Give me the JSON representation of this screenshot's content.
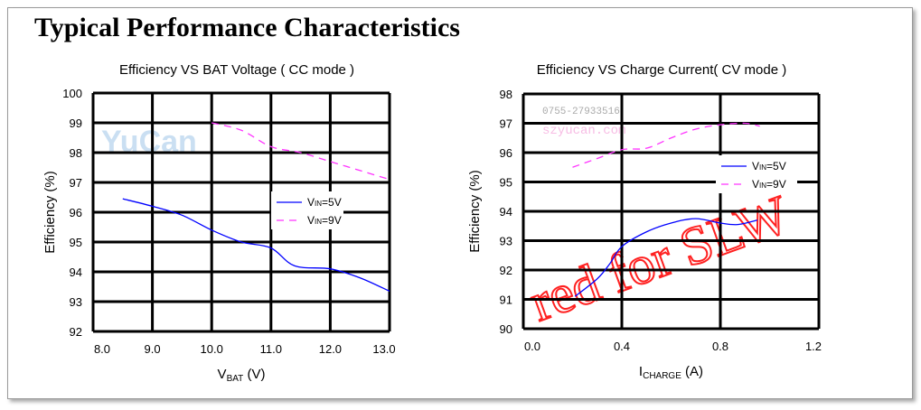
{
  "page_title": "Typical Performance Characteristics",
  "watermark": {
    "logo": "YuCan",
    "phone": "0755-27933516",
    "site": "szyucan.com",
    "stamp": "red for SLW"
  },
  "chart_data": [
    {
      "type": "line",
      "title": "Efficiency VS BAT Voltage ( CC mode )",
      "xlabel": "V",
      "xlabel_sub": "BAT",
      "xlabel_unit": " (V)",
      "ylabel": "Efficiency (%)",
      "xlim": [
        8.0,
        13.0
      ],
      "ylim": [
        92,
        100
      ],
      "xticks": [
        "8.0",
        "9.0",
        "10.0",
        "11.0",
        "12.0",
        "13.0"
      ],
      "yticks": [
        "92",
        "93",
        "94",
        "95",
        "96",
        "97",
        "98",
        "99",
        "100"
      ],
      "grid": true,
      "legend": "middle-right",
      "series": [
        {
          "name": "VIN=5V",
          "name_parts": [
            "V",
            "IN",
            "=5V"
          ],
          "color": "#0000ff",
          "dash": false,
          "x": [
            8.5,
            9.0,
            9.5,
            10.0,
            10.5,
            11.0,
            11.4,
            12.0,
            12.5,
            13.0
          ],
          "y": [
            96.45,
            96.2,
            95.9,
            95.4,
            95.0,
            94.8,
            94.2,
            94.1,
            93.8,
            93.35
          ]
        },
        {
          "name": "VIN=9V",
          "name_parts": [
            "V",
            "IN",
            "=9V"
          ],
          "color": "#ff33ff",
          "dash": true,
          "x": [
            10.0,
            10.5,
            11.0,
            11.5,
            12.0,
            12.5,
            13.0
          ],
          "y": [
            99.0,
            98.75,
            98.2,
            98.0,
            97.7,
            97.4,
            97.1
          ]
        }
      ]
    },
    {
      "type": "line",
      "title": "Efficiency VS Charge Current( CV mode )",
      "xlabel": "I",
      "xlabel_sub": "CHARGE",
      "xlabel_unit": " (A)",
      "ylabel": "Efficiency (%)",
      "xlim": [
        0.0,
        1.2
      ],
      "ylim": [
        90,
        98
      ],
      "xticks": [
        "0.0",
        "0.4",
        "0.8",
        "1.2"
      ],
      "yticks": [
        "90",
        "91",
        "92",
        "93",
        "94",
        "95",
        "96",
        "97",
        "98"
      ],
      "grid": true,
      "legend": "middle-right",
      "series": [
        {
          "name": "VIN=5V",
          "name_parts": [
            "V",
            "IN",
            "=5V"
          ],
          "color": "#0000ff",
          "dash": false,
          "x": [
            0.21,
            0.3,
            0.35,
            0.4,
            0.5,
            0.6,
            0.7,
            0.8,
            0.87,
            0.95
          ],
          "y": [
            91.1,
            91.7,
            92.2,
            92.8,
            93.3,
            93.6,
            93.75,
            93.6,
            93.55,
            93.7
          ]
        },
        {
          "name": "VIN=9V",
          "name_parts": [
            "V",
            "IN",
            "=9V"
          ],
          "color": "#ff33ff",
          "dash": true,
          "x": [
            0.2,
            0.3,
            0.4,
            0.5,
            0.6,
            0.7,
            0.8,
            0.9,
            0.96
          ],
          "y": [
            95.5,
            95.8,
            96.1,
            96.15,
            96.5,
            96.8,
            96.95,
            97.0,
            96.9
          ]
        }
      ]
    }
  ]
}
